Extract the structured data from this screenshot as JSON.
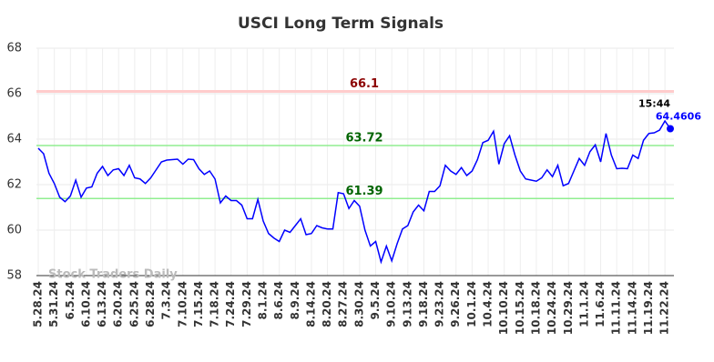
{
  "chart_data": {
    "type": "line",
    "title": "USCI Long Term Signals",
    "categories": [
      "5.28.24",
      null,
      null,
      "5.31.24",
      null,
      null,
      "6.5.24",
      null,
      null,
      "6.10.24",
      null,
      null,
      "6.13.24",
      null,
      null,
      "6.20.24",
      null,
      null,
      "6.25.24",
      null,
      null,
      "6.28.24",
      null,
      null,
      "7.3.24",
      null,
      null,
      "7.10.24",
      null,
      null,
      "7.15.24",
      null,
      null,
      "7.18.24",
      null,
      null,
      "7.24.24",
      null,
      null,
      "7.29.24",
      null,
      null,
      "8.1.24",
      null,
      null,
      "8.6.24",
      null,
      null,
      "8.9.24",
      null,
      null,
      "8.14.24",
      null,
      null,
      "8.20.24",
      null,
      null,
      "8.27.24",
      null,
      null,
      "8.30.24",
      null,
      null,
      "9.5.24",
      null,
      null,
      "9.10.24",
      null,
      null,
      "9.13.24",
      null,
      null,
      "9.18.24",
      null,
      null,
      "9.23.24",
      null,
      null,
      "9.26.24",
      null,
      null,
      "10.1.24",
      null,
      null,
      "10.4.24",
      null,
      null,
      "10.10.24",
      null,
      null,
      "10.15.24",
      null,
      null,
      "10.18.24",
      null,
      null,
      "10.24.24",
      null,
      null,
      "10.29.24",
      null,
      null,
      "11.1.24",
      null,
      null,
      "11.6.24",
      null,
      null,
      "11.11.24",
      null,
      null,
      "11.14.24",
      null,
      null,
      "11.19.24",
      null,
      null,
      "11.22.24",
      null
    ],
    "values": [
      63.6,
      63.36,
      62.5,
      62.05,
      61.45,
      61.25,
      61.5,
      62.2,
      61.45,
      61.85,
      61.9,
      62.5,
      62.8,
      62.4,
      62.65,
      62.7,
      62.4,
      62.85,
      62.3,
      62.25,
      62.05,
      62.3,
      62.65,
      63.0,
      63.08,
      63.1,
      63.12,
      62.9,
      63.12,
      63.1,
      62.7,
      62.45,
      62.6,
      62.25,
      61.2,
      61.5,
      61.3,
      61.3,
      61.1,
      60.5,
      60.5,
      61.35,
      60.4,
      59.85,
      59.65,
      59.5,
      60.0,
      59.9,
      60.2,
      60.5,
      59.8,
      59.85,
      60.2,
      60.1,
      60.05,
      60.05,
      61.65,
      61.6,
      60.95,
      61.3,
      61.05,
      60.0,
      59.3,
      59.5,
      58.6,
      59.3,
      58.65,
      59.4,
      60.05,
      60.2,
      60.8,
      61.1,
      60.85,
      61.7,
      61.7,
      61.95,
      62.85,
      62.6,
      62.45,
      62.75,
      62.4,
      62.6,
      63.1,
      63.85,
      63.95,
      64.35,
      62.9,
      63.8,
      64.15,
      63.3,
      62.6,
      62.25,
      62.2,
      62.15,
      62.3,
      62.65,
      62.35,
      62.85,
      61.95,
      62.05,
      62.6,
      63.15,
      62.85,
      63.45,
      63.75,
      63.0,
      64.25,
      63.3,
      62.7,
      62.72,
      62.7,
      63.3,
      63.15,
      63.95,
      64.25,
      64.28,
      64.4,
      64.8,
      64.4606
    ],
    "color": "#0000ff",
    "ylim": [
      58,
      68
    ],
    "yticks": [
      58,
      60,
      62,
      64,
      66,
      68
    ],
    "grid": true,
    "hlines": [
      {
        "value": 66.1,
        "color": "#ffcccc",
        "label_color": "#8b0000"
      },
      {
        "value": 63.72,
        "color": "#90ee90",
        "label_color": "#006400"
      },
      {
        "value": 61.39,
        "color": "#90ee90",
        "label_color": "#006400"
      }
    ],
    "last_time": "15:44",
    "watermark": "Stock Traders Daily"
  }
}
